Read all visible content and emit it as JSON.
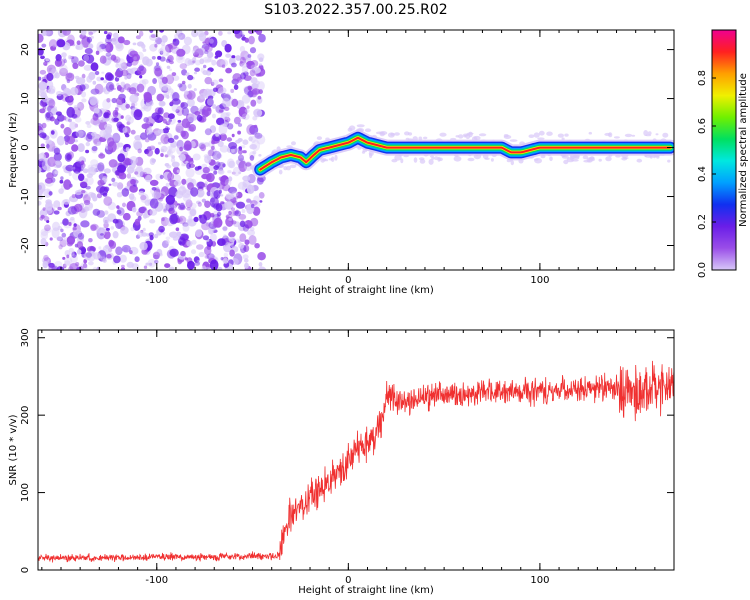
{
  "title": "S103.2022.357.00.25.R02",
  "colors": {
    "snr_line": "#f03030",
    "colormap": [
      "#f2f2ff",
      "#d8c8f8",
      "#9a4ee8",
      "#6a1ee8",
      "#1030f0",
      "#00a0ff",
      "#00e8e0",
      "#00e060",
      "#70f000",
      "#f0f000",
      "#ffa000",
      "#ff2020",
      "#f00090"
    ]
  },
  "chart_data": [
    {
      "type": "heatmap",
      "title": "",
      "xlabel": "Height of straight line (km)",
      "ylabel": "Frequency (Hz)",
      "xlim": [
        -162,
        170
      ],
      "ylim": [
        -25,
        24
      ],
      "xticks": [
        -100,
        0,
        100
      ],
      "yticks": [
        -20,
        -10,
        0,
        10,
        20
      ],
      "grid": false,
      "noise_region": {
        "x": [
          -162,
          -45
        ],
        "y": [
          -25,
          24
        ]
      },
      "signal_track": {
        "x": [
          -46,
          -40,
          -35,
          -30,
          -25,
          -22,
          -18,
          -15,
          -10,
          -5,
          0,
          5,
          10,
          20,
          30,
          40,
          50,
          60,
          70,
          80,
          85,
          90,
          100,
          110,
          120,
          130,
          140,
          150,
          160,
          168
        ],
        "y": [
          -4.5,
          -3,
          -2,
          -1.5,
          -2,
          -3,
          -1.5,
          -0.5,
          0,
          0.5,
          1,
          2,
          1,
          0,
          0,
          0,
          0,
          0,
          0,
          0,
          -1,
          -1,
          0,
          0,
          0,
          0,
          0,
          0,
          0,
          0
        ]
      },
      "colorbar": {
        "label": "Normalized spectral amplitude",
        "range": [
          0,
          1
        ],
        "ticks": [
          "0.0",
          "0.2",
          "0.4",
          "0.6",
          "0.8"
        ]
      }
    },
    {
      "type": "line",
      "title": "",
      "xlabel": "Height of straight line (km)",
      "ylabel": "SNR (10 * v/v)",
      "xlim": [
        -162,
        170
      ],
      "ylim": [
        0,
        310
      ],
      "xticks": [
        -100,
        0,
        100
      ],
      "yticks": [
        0,
        100,
        200,
        300
      ],
      "grid": false,
      "series": [
        {
          "x": [
            -162,
            -140,
            -120,
            -100,
            -80,
            -60,
            -50,
            -40,
            -36,
            -32,
            -30,
            -25,
            -20,
            -15,
            -10,
            -5,
            0,
            5,
            10,
            15,
            18,
            20,
            25,
            30,
            35,
            40,
            50,
            60,
            70,
            80,
            90,
            100,
            110,
            120,
            130,
            140,
            145,
            150,
            155,
            160,
            165,
            170
          ],
          "y": [
            15,
            16,
            16,
            17,
            17,
            17,
            18,
            18,
            20,
            60,
            70,
            80,
            95,
            105,
            115,
            125,
            140,
            160,
            165,
            175,
            200,
            230,
            220,
            215,
            220,
            225,
            225,
            225,
            228,
            230,
            230,
            230,
            232,
            233,
            235,
            235,
            230,
            225,
            230,
            235,
            235,
            235
          ]
        }
      ]
    }
  ]
}
